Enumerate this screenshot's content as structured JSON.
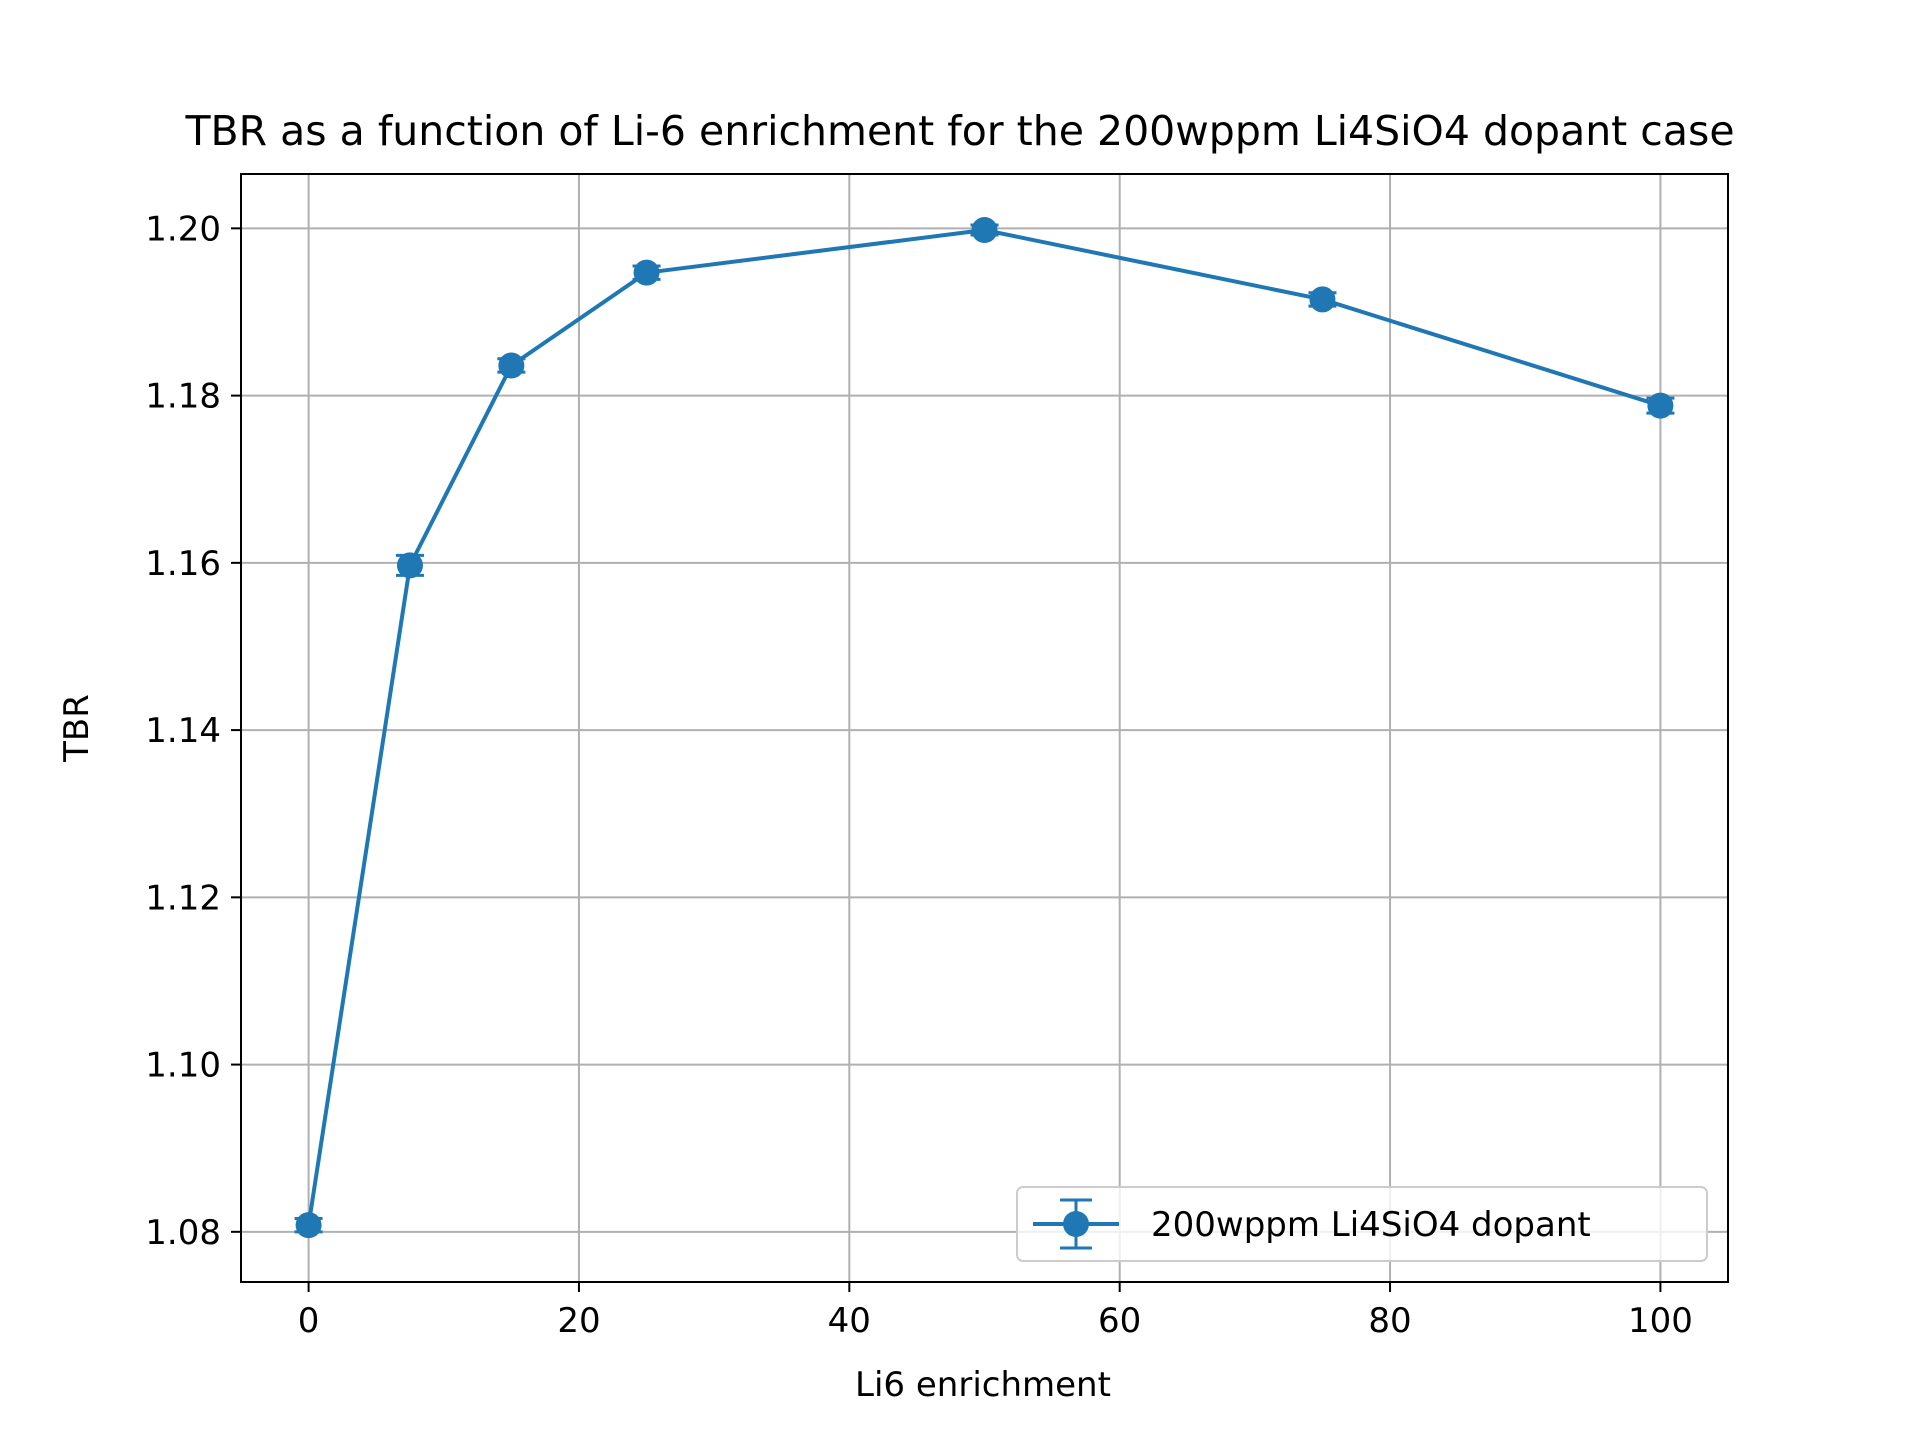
{
  "chart_data": {
    "type": "line",
    "title": "TBR as a function of Li-6 enrichment for the 200wppm Li4SiO4 dopant case",
    "xlabel": "Li6 enrichment",
    "ylabel": "TBR",
    "xlim": [
      -5,
      105
    ],
    "ylim": [
      1.074,
      1.2065
    ],
    "xticks": [
      0,
      20,
      40,
      60,
      80,
      100
    ],
    "xtick_labels": [
      "0",
      "20",
      "40",
      "60",
      "80",
      "100"
    ],
    "yticks": [
      1.08,
      1.1,
      1.12,
      1.14,
      1.16,
      1.18,
      1.2
    ],
    "ytick_labels": [
      "1.08",
      "1.10",
      "1.12",
      "1.14",
      "1.16",
      "1.18",
      "1.20"
    ],
    "grid": true,
    "legend_position": "lower right",
    "series": [
      {
        "name": "200wppm Li4SiO4 dopant",
        "color": "#1f77b4",
        "marker": "circle",
        "error_bars": true,
        "x": [
          0,
          7.5,
          15,
          25,
          50,
          75,
          100
        ],
        "y": [
          1.0808,
          1.1597,
          1.1836,
          1.1947,
          1.1998,
          1.1915,
          1.1788
        ],
        "yerr": [
          0.0008,
          0.0012,
          0.0008,
          0.0008,
          0.0006,
          0.0008,
          0.0009
        ]
      }
    ]
  }
}
